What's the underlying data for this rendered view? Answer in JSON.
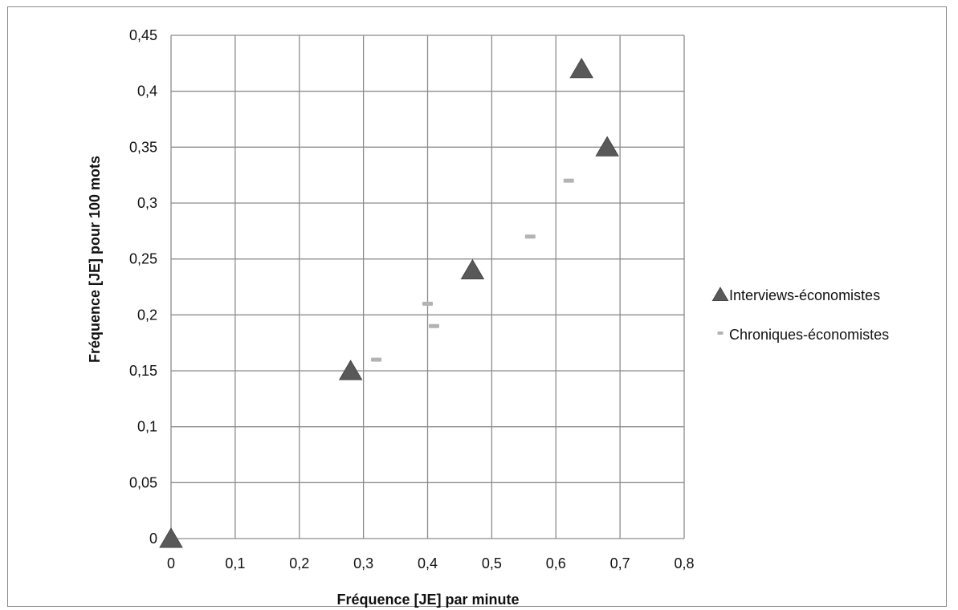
{
  "chart_data": {
    "type": "scatter",
    "title": "",
    "xlabel": "Fréquence [JE] par minute",
    "ylabel": "Fréquence [JE] pour 100 mots",
    "xlim": [
      0,
      0.8
    ],
    "ylim": [
      0,
      0.45
    ],
    "x_ticks": [
      0,
      0.1,
      0.2,
      0.3,
      0.4,
      0.5,
      0.6,
      0.7,
      0.8
    ],
    "x_tick_labels": [
      "0",
      "0,1",
      "0,2",
      "0,3",
      "0,4",
      "0,5",
      "0,6",
      "0,7",
      "0,8"
    ],
    "y_ticks": [
      0,
      0.05,
      0.1,
      0.15,
      0.2,
      0.25,
      0.3,
      0.35,
      0.4,
      0.45
    ],
    "y_tick_labels": [
      "0",
      "0,05",
      "0,1",
      "0,15",
      "0,2",
      "0,25",
      "0,3",
      "0,35",
      "0,4",
      "0,45"
    ],
    "grid": true,
    "legend_position": "right",
    "series": [
      {
        "name": "Interviews-économistes",
        "marker": "triangle",
        "color": "#595959",
        "points": [
          {
            "x": 0,
            "y": 0
          },
          {
            "x": 0.28,
            "y": 0.15
          },
          {
            "x": 0.47,
            "y": 0.24
          },
          {
            "x": 0.64,
            "y": 0.42
          },
          {
            "x": 0.68,
            "y": 0.35
          }
        ]
      },
      {
        "name": "Chroniques-économistes",
        "marker": "dash",
        "color": "#b3b3b3",
        "points": [
          {
            "x": 0.32,
            "y": 0.16
          },
          {
            "x": 0.4,
            "y": 0.21
          },
          {
            "x": 0.41,
            "y": 0.19
          },
          {
            "x": 0.56,
            "y": 0.27
          },
          {
            "x": 0.62,
            "y": 0.32
          }
        ]
      }
    ]
  }
}
